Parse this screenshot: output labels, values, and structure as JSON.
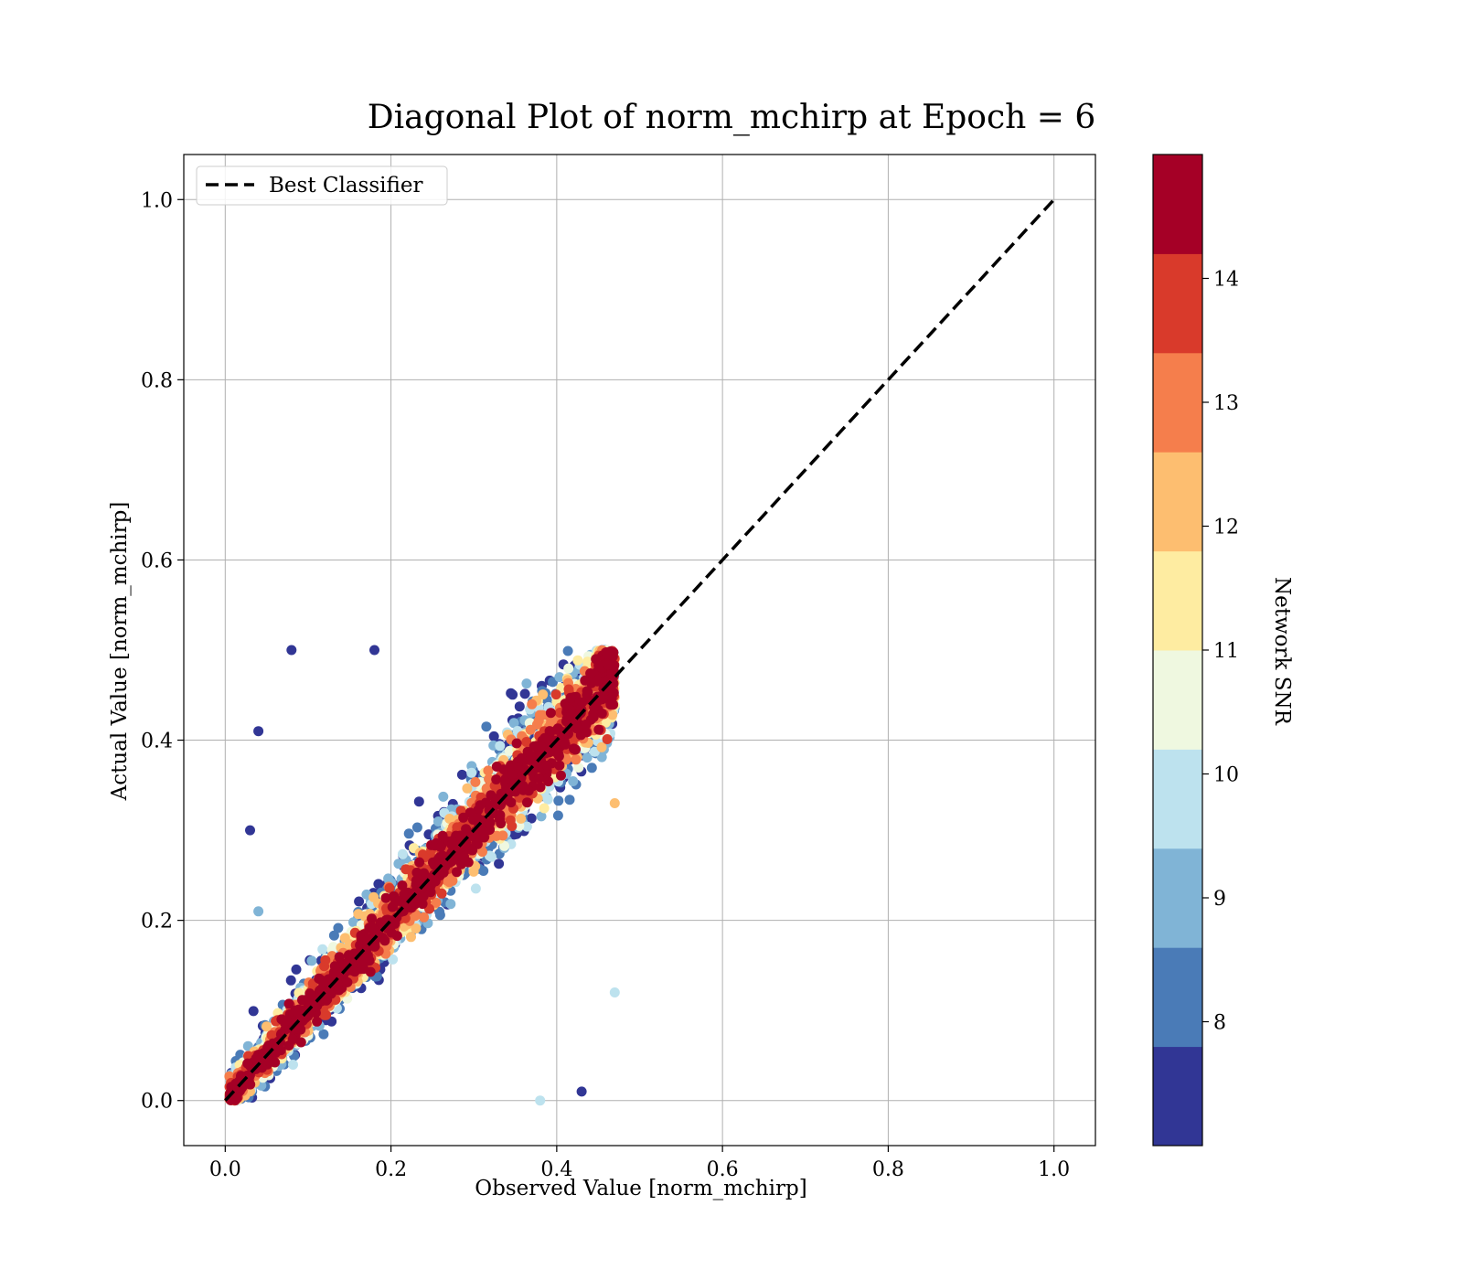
{
  "chart_data": {
    "type": "scatter",
    "title": "Diagonal Plot of norm_mchirp at Epoch = 6",
    "xlabel": "Observed Value [norm_mchirp]",
    "ylabel": "Actual Value [norm_mchirp]",
    "xlim": [
      -0.05,
      1.05
    ],
    "ylim": [
      -0.05,
      1.05
    ],
    "xticks": [
      0.0,
      0.2,
      0.4,
      0.6,
      0.8,
      1.0
    ],
    "yticks": [
      0.0,
      0.2,
      0.4,
      0.6,
      0.8,
      1.0
    ],
    "xtick_labels": [
      "0.0",
      "0.2",
      "0.4",
      "0.6",
      "0.8",
      "1.0"
    ],
    "ytick_labels": [
      "0.0",
      "0.2",
      "0.4",
      "0.6",
      "0.8",
      "1.0"
    ],
    "grid": true,
    "legend": {
      "placement": "top-left",
      "entries": [
        "Best Classifier"
      ]
    },
    "reference_line": {
      "name": "Best Classifier",
      "style": "dashed",
      "color": "#000000",
      "x": [
        0.0,
        1.0
      ],
      "y": [
        0.0,
        1.0
      ]
    },
    "scatter_region": {
      "x_range": [
        0.0,
        0.47
      ],
      "y_range": [
        0.0,
        0.5
      ],
      "description_points": [
        {
          "x": 0.08,
          "y": 0.5,
          "snr": 7.5
        },
        {
          "x": 0.04,
          "y": 0.41,
          "snr": 7.5
        },
        {
          "x": 0.03,
          "y": 0.3,
          "snr": 7.5
        },
        {
          "x": 0.04,
          "y": 0.21,
          "snr": 9
        },
        {
          "x": 0.47,
          "y": 0.12,
          "snr": 10
        },
        {
          "x": 0.43,
          "y": 0.01,
          "snr": 7.5
        },
        {
          "x": 0.38,
          "y": 0.0,
          "snr": 10
        },
        {
          "x": 0.18,
          "y": 0.5,
          "snr": 7.5
        },
        {
          "x": 0.47,
          "y": 0.33,
          "snr": 12
        }
      ]
    },
    "colorbar": {
      "label": "Network SNR",
      "range": [
        7,
        15
      ],
      "ticks": [
        8,
        9,
        10,
        11,
        12,
        13,
        14
      ],
      "tick_labels": [
        "8",
        "9",
        "10",
        "11",
        "12",
        "13",
        "14"
      ],
      "bins": [
        {
          "from": 7,
          "to": 7.8,
          "color": "#313695"
        },
        {
          "from": 7.8,
          "to": 8.6,
          "color": "#4a7bb7"
        },
        {
          "from": 8.6,
          "to": 9.4,
          "color": "#80b4d6"
        },
        {
          "from": 9.4,
          "to": 10.2,
          "color": "#bde2ee"
        },
        {
          "from": 10.2,
          "to": 11.0,
          "color": "#eff8e0"
        },
        {
          "from": 11.0,
          "to": 11.8,
          "color": "#feeca1"
        },
        {
          "from": 11.8,
          "to": 12.6,
          "color": "#fdbe70"
        },
        {
          "from": 12.6,
          "to": 13.4,
          "color": "#f57e4c"
        },
        {
          "from": 13.4,
          "to": 14.2,
          "color": "#d93a2b"
        },
        {
          "from": 14.2,
          "to": 15.0,
          "color": "#a50026"
        }
      ]
    }
  }
}
